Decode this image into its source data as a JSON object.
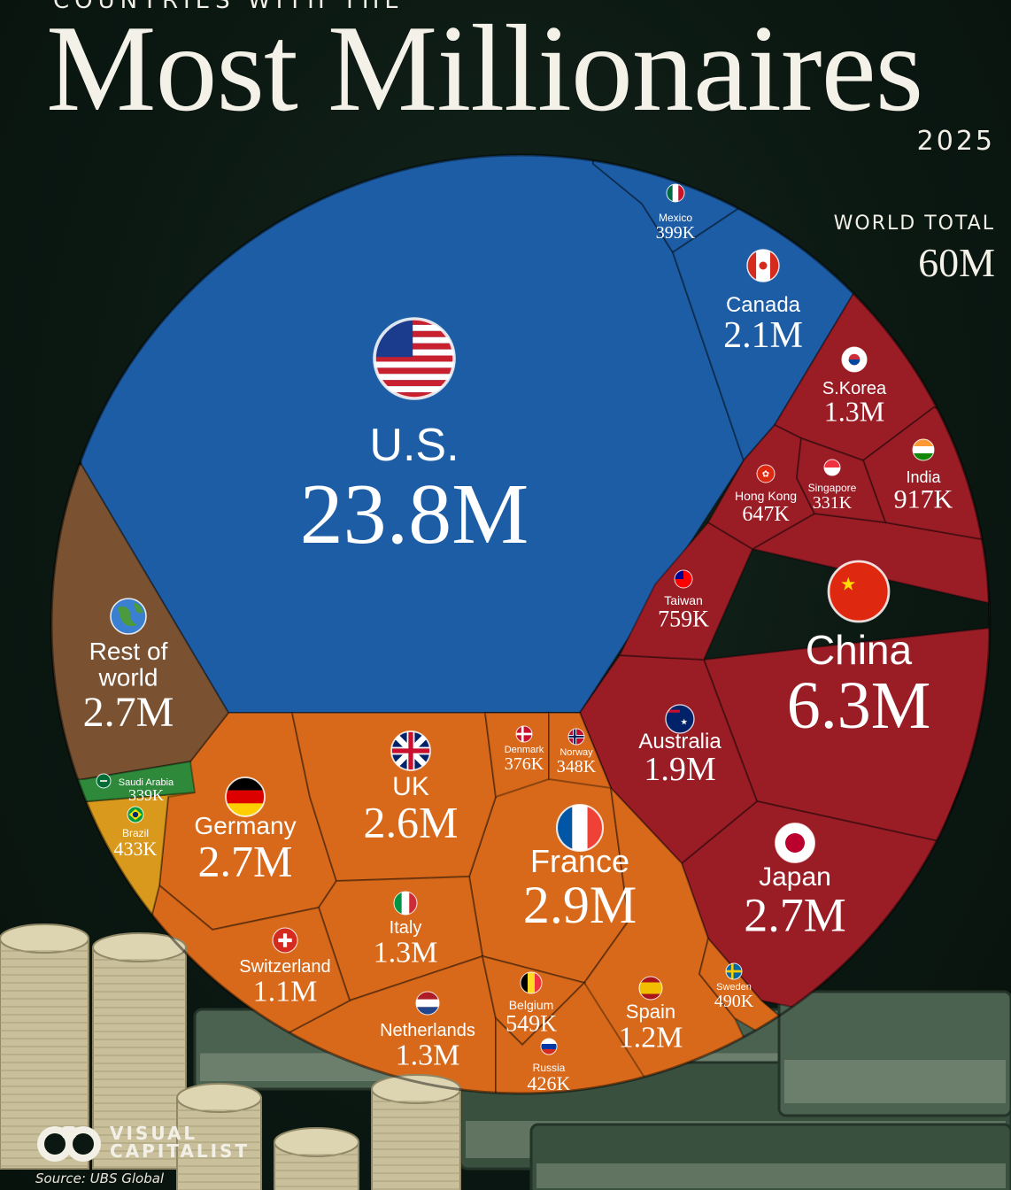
{
  "header": {
    "kicker": "COUNTRIES WITH THE",
    "title": "Most Millionaires",
    "year": "2025",
    "world_total_label": "WORLD TOTAL",
    "world_total_value": "60M"
  },
  "footer": {
    "brand_line1": "VISUAL",
    "brand_line2": "CAPITALIST",
    "source": "Source: UBS Global"
  },
  "colors": {
    "us": "#1d5da6",
    "asia_pacific": "#9a1d26",
    "europe": "#d8691a",
    "rest_of_world": "#7a5232",
    "saudi_arabia": "#2e8a3a",
    "brazil": "#d9991c",
    "background": "#0b1812"
  },
  "chart_data": {
    "type": "voronoi treemap",
    "unit": "millionaires",
    "total": "60M",
    "cells": [
      {
        "name": "U.S.",
        "label": "23.8M",
        "value": 23800000,
        "region": "us",
        "flag": "us-flag-icon"
      },
      {
        "name": "Mexico",
        "label": "399K",
        "value": 399000,
        "region": "us",
        "flag": "mexico-flag-icon"
      },
      {
        "name": "Canada",
        "label": "2.1M",
        "value": 2100000,
        "region": "us",
        "flag": "canada-flag-icon"
      },
      {
        "name": "China",
        "label": "6.3M",
        "value": 6300000,
        "region": "asia_pacific",
        "flag": "china-flag-icon"
      },
      {
        "name": "Japan",
        "label": "2.7M",
        "value": 2700000,
        "region": "asia_pacific",
        "flag": "japan-flag-icon"
      },
      {
        "name": "Australia",
        "label": "1.9M",
        "value": 1900000,
        "region": "asia_pacific",
        "flag": "australia-flag-icon"
      },
      {
        "name": "S.Korea",
        "label": "1.3M",
        "value": 1300000,
        "region": "asia_pacific",
        "flag": "south-korea-flag-icon"
      },
      {
        "name": "India",
        "label": "917K",
        "value": 917000,
        "region": "asia_pacific",
        "flag": "india-flag-icon"
      },
      {
        "name": "Taiwan",
        "label": "759K",
        "value": 759000,
        "region": "asia_pacific",
        "flag": "taiwan-flag-icon"
      },
      {
        "name": "Hong Kong",
        "label": "647K",
        "value": 647000,
        "region": "asia_pacific",
        "flag": "hong-kong-flag-icon"
      },
      {
        "name": "Singapore",
        "label": "331K",
        "value": 331000,
        "region": "asia_pacific",
        "flag": "singapore-flag-icon"
      },
      {
        "name": "France",
        "label": "2.9M",
        "value": 2900000,
        "region": "europe",
        "flag": "france-flag-icon"
      },
      {
        "name": "Germany",
        "label": "2.7M",
        "value": 2700000,
        "region": "europe",
        "flag": "germany-flag-icon"
      },
      {
        "name": "UK",
        "label": "2.6M",
        "value": 2600000,
        "region": "europe",
        "flag": "uk-flag-icon"
      },
      {
        "name": "Italy",
        "label": "1.3M",
        "value": 1300000,
        "region": "europe",
        "flag": "italy-flag-icon"
      },
      {
        "name": "Netherlands",
        "label": "1.3M",
        "value": 1300000,
        "region": "europe",
        "flag": "netherlands-flag-icon"
      },
      {
        "name": "Spain",
        "label": "1.2M",
        "value": 1200000,
        "region": "europe",
        "flag": "spain-flag-icon"
      },
      {
        "name": "Switzerland",
        "label": "1.1M",
        "value": 1100000,
        "region": "europe",
        "flag": "switzerland-flag-icon"
      },
      {
        "name": "Belgium",
        "label": "549K",
        "value": 549000,
        "region": "europe",
        "flag": "belgium-flag-icon"
      },
      {
        "name": "Sweden",
        "label": "490K",
        "value": 490000,
        "region": "europe",
        "flag": "sweden-flag-icon"
      },
      {
        "name": "Russia",
        "label": "426K",
        "value": 426000,
        "region": "europe",
        "flag": "russia-flag-icon"
      },
      {
        "name": "Denmark",
        "label": "376K",
        "value": 376000,
        "region": "europe",
        "flag": "denmark-flag-icon"
      },
      {
        "name": "Norway",
        "label": "348K",
        "value": 348000,
        "region": "europe",
        "flag": "norway-flag-icon"
      },
      {
        "name": "Rest of world",
        "label": "2.7M",
        "value": 2700000,
        "region": "rest_of_world",
        "flag": "globe-icon"
      },
      {
        "name": "Brazil",
        "label": "433K",
        "value": 433000,
        "region": "brazil",
        "flag": "brazil-flag-icon"
      },
      {
        "name": "Saudi Arabia",
        "label": "339K",
        "value": 339000,
        "region": "saudi_arabia",
        "flag": "saudi-arabia-flag-icon"
      }
    ]
  }
}
